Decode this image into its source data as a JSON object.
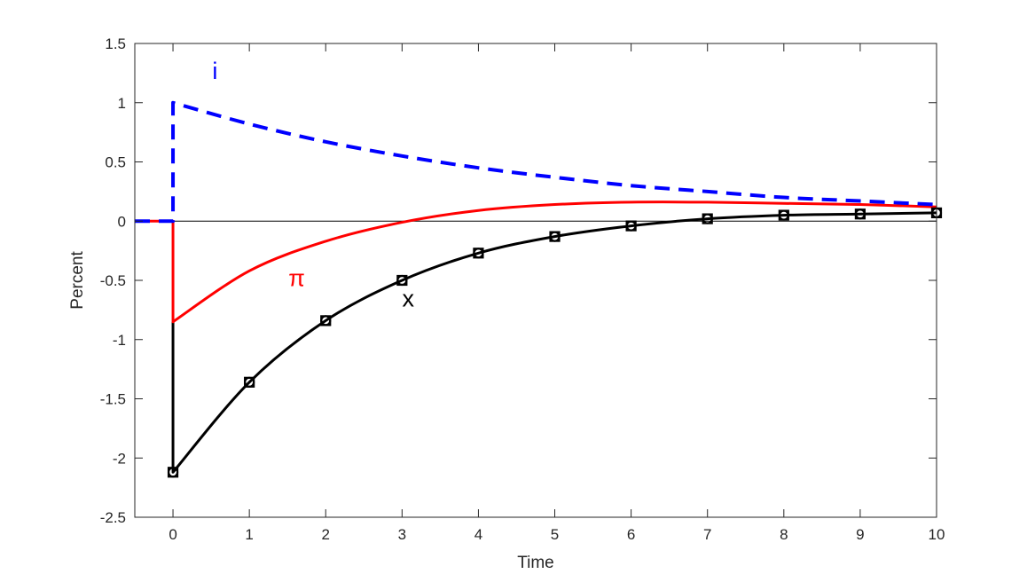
{
  "chart_data": {
    "type": "line",
    "xlabel": "Time",
    "ylabel": "Percent",
    "xlim": [
      -0.5,
      10
    ],
    "ylim": [
      -2.5,
      1.5
    ],
    "xticks": [
      0,
      1,
      2,
      3,
      4,
      5,
      6,
      7,
      8,
      9,
      10
    ],
    "yticks": [
      -2.5,
      -2,
      -1.5,
      -1,
      -0.5,
      0,
      0.5,
      1,
      1.5
    ],
    "ytick_labels": [
      "-2.5",
      "-2",
      "-1.5",
      "-1",
      "-0.5",
      "0",
      "0.5",
      "1",
      "1.5"
    ],
    "grid": false,
    "zero_line": true,
    "series": [
      {
        "name": "i",
        "color": "#0000ff",
        "style": "dashed",
        "x": [
          -0.5,
          0,
          0,
          1,
          2,
          3,
          4,
          5,
          6,
          7,
          8,
          9,
          10
        ],
        "y": [
          0,
          0,
          1.0,
          0.82,
          0.67,
          0.55,
          0.45,
          0.37,
          0.3,
          0.25,
          0.2,
          0.17,
          0.14
        ]
      },
      {
        "name": "π",
        "color": "#ff0000",
        "style": "solid",
        "x": [
          -0.5,
          0,
          0,
          1,
          2,
          3,
          4,
          5,
          6,
          7,
          8,
          9,
          10
        ],
        "y": [
          0,
          0,
          -0.85,
          -0.42,
          -0.17,
          -0.01,
          0.09,
          0.14,
          0.16,
          0.16,
          0.15,
          0.14,
          0.12
        ]
      },
      {
        "name": "x",
        "color": "#000000",
        "style": "solid-markers",
        "marker": "square-circle",
        "x": [
          0,
          0,
          1,
          2,
          3,
          4,
          5,
          6,
          7,
          8,
          9,
          10
        ],
        "y": [
          -0.85,
          -2.12,
          -1.36,
          -0.84,
          -0.5,
          -0.27,
          -0.13,
          -0.04,
          0.02,
          0.05,
          0.06,
          0.07
        ],
        "marker_x": [
          0,
          1,
          2,
          3,
          4,
          5,
          6,
          7,
          8,
          9,
          10
        ],
        "marker_y": [
          -2.12,
          -1.36,
          -0.84,
          -0.5,
          -0.27,
          -0.13,
          -0.04,
          0.02,
          0.05,
          0.06,
          0.07
        ]
      }
    ],
    "annotations": [
      {
        "text": "i",
        "x": 0.55,
        "y": 1.2,
        "color": "#0000ff"
      },
      {
        "text": "π",
        "x": 1.62,
        "y": -0.55,
        "color": "#ff0000"
      },
      {
        "text": "x",
        "x": 3.08,
        "y": -0.72,
        "color": "#000000"
      }
    ]
  }
}
